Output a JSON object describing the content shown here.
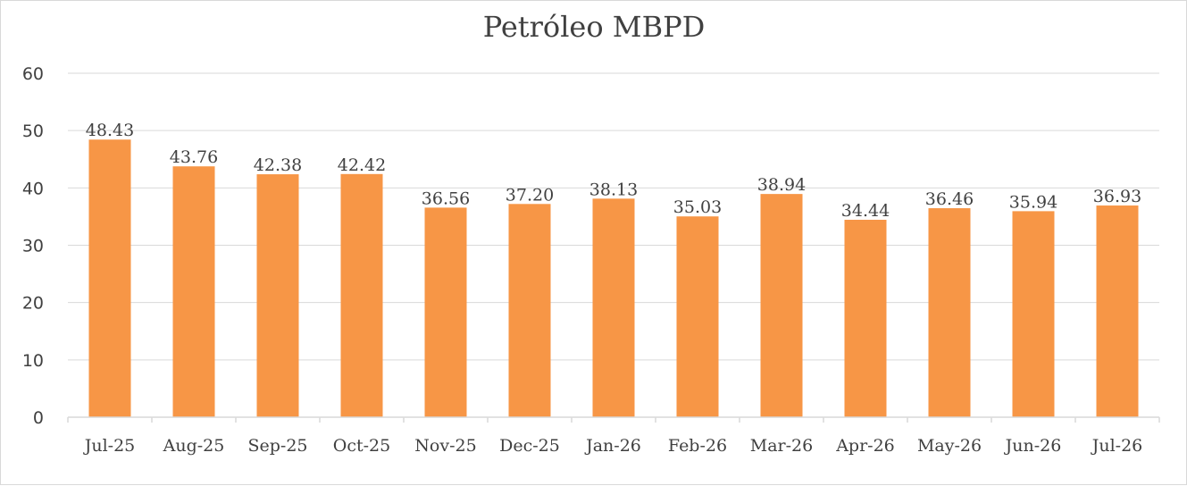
{
  "chart_data": {
    "type": "bar",
    "title": "Petróleo MBPD",
    "xlabel": "",
    "ylabel": "",
    "categories": [
      "Jul-25",
      "Aug-25",
      "Sep-25",
      "Oct-25",
      "Nov-25",
      "Dec-25",
      "Jan-26",
      "Feb-26",
      "Mar-26",
      "Apr-26",
      "May-26",
      "Jun-26",
      "Jul-26"
    ],
    "values": [
      48.43,
      43.76,
      42.38,
      42.42,
      36.56,
      37.2,
      38.13,
      35.03,
      38.94,
      34.44,
      36.46,
      35.94,
      36.93
    ],
    "data_labels": [
      "48.43",
      "43.76",
      "42.38",
      "42.42",
      "36.56",
      "37.20",
      "38.13",
      "35.03",
      "38.94",
      "34.44",
      "36.46",
      "35.94",
      "36.93"
    ],
    "ylim": [
      0,
      60
    ],
    "yticks": [
      0,
      10,
      20,
      30,
      40,
      50,
      60
    ],
    "grid": true,
    "legend": "none",
    "bar_color": "#F79646"
  }
}
